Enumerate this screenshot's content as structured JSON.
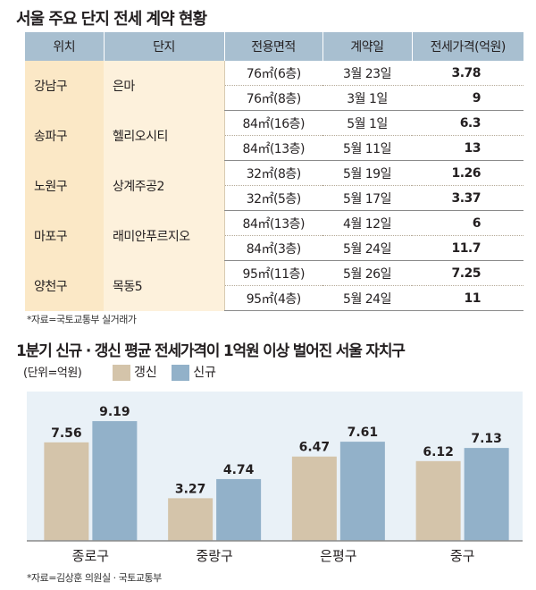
{
  "table_title": "서울 주요 단지 전세 계약 현황",
  "table_headers": [
    "위치",
    "단지",
    "전용면적",
    "계약일",
    "전세가격(억원)"
  ],
  "table_groups": [
    {
      "location": "강남구",
      "complex": "은마",
      "rows": [
        {
          "area": "76㎡(6층)",
          "date": "3월 23일",
          "price": "3.78"
        },
        {
          "area": "76㎡(8층)",
          "date": "3월 1일",
          "price": "9"
        }
      ]
    },
    {
      "location": "송파구",
      "complex": "헬리오시티",
      "rows": [
        {
          "area": "84㎡(16층)",
          "date": "5월 1일",
          "price": "6.3"
        },
        {
          "area": "84㎡(13층)",
          "date": "5월 11일",
          "price": "13"
        }
      ]
    },
    {
      "location": "노원구",
      "complex": "상계주공2",
      "rows": [
        {
          "area": "32㎡(8층)",
          "date": "5월 19일",
          "price": "1.26"
        },
        {
          "area": "32㎡(5층)",
          "date": "5월 17일",
          "price": "3.37"
        }
      ]
    },
    {
      "location": "마포구",
      "complex": "래미안푸르지오",
      "rows": [
        {
          "area": "84㎡(13층)",
          "date": "4월 12일",
          "price": "6"
        },
        {
          "area": "84㎡(3층)",
          "date": "5월 24일",
          "price": "11.7"
        }
      ]
    },
    {
      "location": "양천구",
      "complex": "목동5",
      "rows": [
        {
          "area": "95㎡(11층)",
          "date": "5월 26일",
          "price": "7.25"
        },
        {
          "area": "95㎡(4층)",
          "date": "5월 24일",
          "price": "11"
        }
      ]
    }
  ],
  "table_source": "*자료=국토교통부 실거래가",
  "chart_data": {
    "type": "bar",
    "title": "1분기 신규 · 갱신 평균 전세가격이 1억원 이상 벌어진 서울 자치구",
    "unit_label": "(단위=억원)",
    "categories": [
      "종로구",
      "중랑구",
      "은평구",
      "중구"
    ],
    "series": [
      {
        "name": "갱신",
        "values": [
          7.56,
          3.27,
          6.47,
          6.12
        ],
        "color": "#d4c4aa",
        "labels": [
          "7.56",
          "3.27",
          "6.47",
          "6.12"
        ]
      },
      {
        "name": "신규",
        "values": [
          9.19,
          4.74,
          7.61,
          7.13
        ],
        "color": "#92b1c9",
        "labels": [
          "9.19",
          "4.74",
          "7.61",
          "7.13"
        ]
      }
    ],
    "ylim": [
      0,
      10.5
    ],
    "background": "#e9f1f7",
    "legend_position": "top-left",
    "grid": false,
    "source": "*자료=김상훈 의원실 · 국토교통부"
  }
}
